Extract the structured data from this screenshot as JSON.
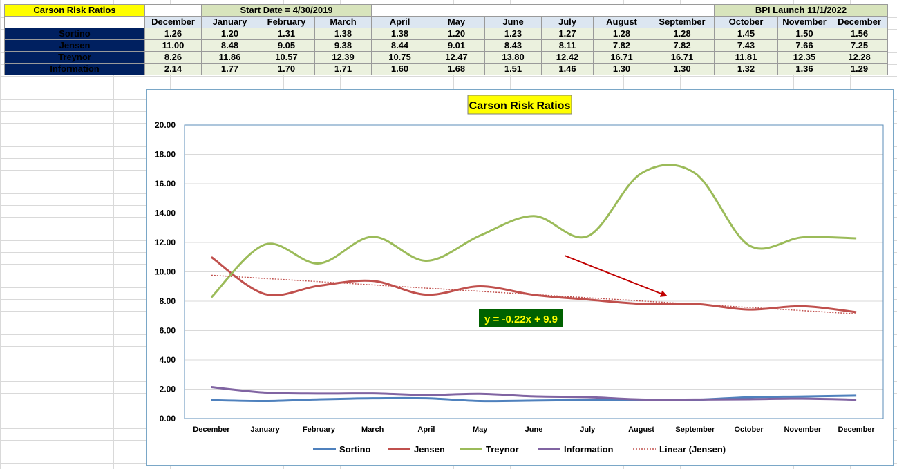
{
  "sheet": {
    "title": "Carson Risk Ratios",
    "start_date_label": "Start Date = 4/30/2019",
    "bpi_launch_label": "BPI Launch 11/1/2022",
    "months": [
      "December",
      "January",
      "February",
      "March",
      "April",
      "May",
      "June",
      "July",
      "August",
      "September",
      "October",
      "November",
      "December"
    ],
    "rows": [
      {
        "label": "Sortino",
        "values": [
          "1.26",
          "1.20",
          "1.31",
          "1.38",
          "1.38",
          "1.20",
          "1.23",
          "1.27",
          "1.28",
          "1.28",
          "1.45",
          "1.50",
          "1.56"
        ]
      },
      {
        "label": "Jensen",
        "values": [
          "11.00",
          "8.48",
          "9.05",
          "9.38",
          "8.44",
          "9.01",
          "8.43",
          "8.11",
          "7.82",
          "7.82",
          "7.43",
          "7.66",
          "7.25"
        ]
      },
      {
        "label": "Treynor",
        "values": [
          "8.26",
          "11.86",
          "10.57",
          "12.39",
          "10.75",
          "12.47",
          "13.80",
          "12.42",
          "16.71",
          "16.71",
          "11.81",
          "12.35",
          "12.28"
        ]
      },
      {
        "label": "Information",
        "values": [
          "2.14",
          "1.77",
          "1.70",
          "1.71",
          "1.60",
          "1.68",
          "1.51",
          "1.46",
          "1.30",
          "1.30",
          "1.32",
          "1.36",
          "1.29"
        ]
      }
    ]
  },
  "chart_data": {
    "type": "line",
    "title": "Carson Risk Ratios",
    "categories": [
      "December",
      "January",
      "February",
      "March",
      "April",
      "May",
      "June",
      "July",
      "August",
      "September",
      "October",
      "November",
      "December"
    ],
    "ylim": [
      0,
      20
    ],
    "yticks": [
      "0.00",
      "2.00",
      "4.00",
      "6.00",
      "8.00",
      "10.00",
      "12.00",
      "14.00",
      "16.00",
      "18.00",
      "20.00"
    ],
    "grid": true,
    "legend_position": "bottom",
    "series": [
      {
        "name": "Sortino",
        "color": "#4f81bd",
        "values": [
          1.26,
          1.2,
          1.31,
          1.38,
          1.38,
          1.2,
          1.23,
          1.27,
          1.28,
          1.28,
          1.45,
          1.5,
          1.56
        ]
      },
      {
        "name": "Jensen",
        "color": "#c0504d",
        "values": [
          11.0,
          8.48,
          9.05,
          9.38,
          8.44,
          9.01,
          8.43,
          8.11,
          7.82,
          7.82,
          7.43,
          7.66,
          7.25
        ]
      },
      {
        "name": "Treynor",
        "color": "#9bbb59",
        "values": [
          8.26,
          11.86,
          10.57,
          12.39,
          10.75,
          12.47,
          13.8,
          12.42,
          16.71,
          16.71,
          11.81,
          12.35,
          12.28
        ]
      },
      {
        "name": "Information",
        "color": "#8064a2",
        "values": [
          2.14,
          1.77,
          1.7,
          1.71,
          1.6,
          1.68,
          1.51,
          1.46,
          1.3,
          1.3,
          1.32,
          1.36,
          1.29
        ]
      }
    ],
    "trendline": {
      "name": "Linear (Jensen)",
      "color": "#c0504d",
      "equation": "y = -0.22x + 9.9"
    },
    "annotation": {
      "type": "arrow",
      "color": "#c00000"
    }
  }
}
